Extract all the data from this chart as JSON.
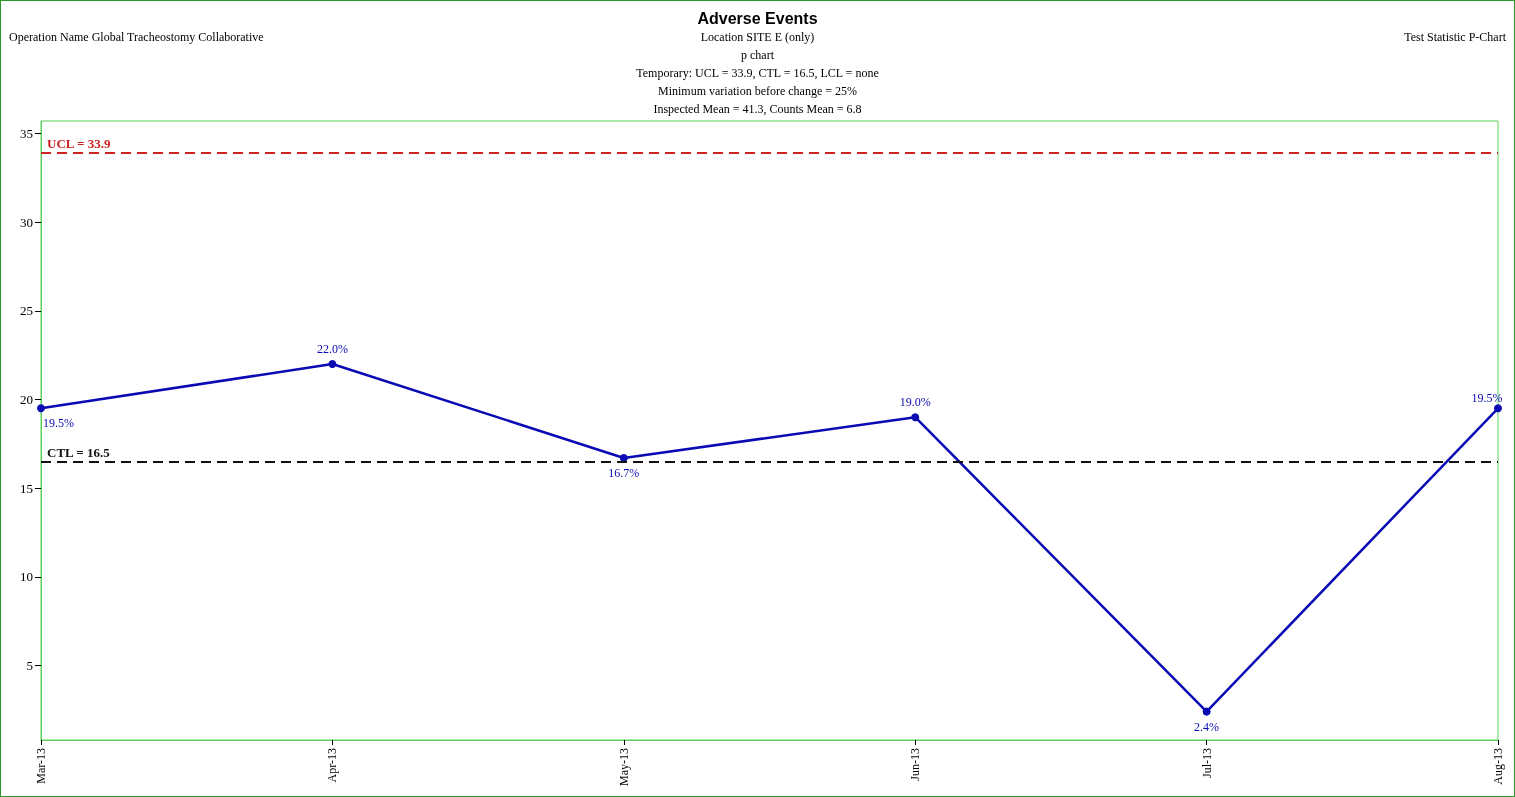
{
  "chart_data": {
    "type": "line",
    "title": "Adverse Events",
    "subtitle": "Location SITE E (only)\np chart\nTemporary: UCL = 33.9, CTL = 16.5, LCL = none\nMinimum variation before change = 25%\nInspected Mean = 41.3, Counts Mean = 6.8",
    "annotations": [
      "Operation Name Global Tracheostomy Collaborative",
      "Test Statistic P-Chart"
    ],
    "categories": [
      "Mar-13",
      "Apr-13",
      "May-13",
      "Jun-13",
      "Jul-13",
      "Aug-13"
    ],
    "series": [
      {
        "color": "#0a0ab4",
        "values": [
          19.5,
          22.0,
          16.7,
          19.0,
          2.4,
          19.5
        ],
        "value_labels": [
          "19.5%",
          "22.0%",
          "16.7%",
          "19.0%",
          "2.4%",
          "19.5%"
        ]
      }
    ],
    "ylim": [
      0.8,
      35.7
    ],
    "yticks": [
      5,
      10,
      15,
      20,
      25,
      30,
      35
    ],
    "ref_lines": [
      {
        "axis": "y",
        "value": 33.9,
        "label": "UCL = 33.9",
        "color": "#cc2222",
        "line_style": "dashed"
      },
      {
        "axis": "y",
        "value": 16.5,
        "label": "CTL = 16.5",
        "color": "#111111",
        "line_style": "dashed"
      }
    ],
    "grid": false,
    "marker": "circle",
    "line_style": "solid"
  }
}
